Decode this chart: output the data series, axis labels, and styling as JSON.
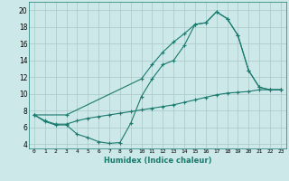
{
  "xlabel": "Humidex (Indice chaleur)",
  "ylabel": "",
  "xlim": [
    -0.5,
    23.5
  ],
  "ylim": [
    3.5,
    21
  ],
  "yticks": [
    4,
    6,
    8,
    10,
    12,
    14,
    16,
    18,
    20
  ],
  "xticks": [
    0,
    1,
    2,
    3,
    4,
    5,
    6,
    7,
    8,
    9,
    10,
    11,
    12,
    13,
    14,
    15,
    16,
    17,
    18,
    19,
    20,
    21,
    22,
    23
  ],
  "xtick_labels": [
    "0",
    "1",
    "2",
    "3",
    "4",
    "5",
    "6",
    "7",
    "8",
    "9",
    "10",
    "11",
    "12",
    "13",
    "14",
    "15",
    "16",
    "17",
    "18",
    "19",
    "20",
    "21",
    "22",
    "23"
  ],
  "line_color": "#1a7a6e",
  "bg_color": "#cce8e8",
  "grid_color": "#aac8c8",
  "line1_x": [
    0,
    1,
    2,
    3,
    4,
    5,
    6,
    7,
    8,
    9,
    10,
    11,
    12,
    13,
    14,
    15,
    16,
    17,
    18,
    19,
    20,
    21,
    22,
    23
  ],
  "line1_y": [
    7.5,
    6.7,
    6.3,
    6.3,
    5.2,
    4.8,
    4.3,
    4.1,
    4.2,
    6.5,
    9.7,
    11.8,
    13.5,
    14.0,
    15.8,
    18.3,
    18.5,
    19.8,
    19.0,
    17.0,
    12.8,
    10.8,
    10.5,
    10.5
  ],
  "line2_x": [
    0,
    1,
    2,
    3,
    4,
    5,
    6,
    7,
    8,
    9,
    10,
    11,
    12,
    13,
    14,
    15,
    16,
    17,
    18,
    19,
    20,
    21,
    22,
    23
  ],
  "line2_y": [
    7.5,
    6.8,
    6.4,
    6.4,
    6.8,
    7.1,
    7.3,
    7.5,
    7.7,
    7.9,
    8.1,
    8.3,
    8.5,
    8.7,
    9.0,
    9.3,
    9.6,
    9.9,
    10.1,
    10.2,
    10.3,
    10.5,
    10.5,
    10.5
  ],
  "line3_x": [
    0,
    3,
    10,
    11,
    12,
    13,
    14,
    15,
    16,
    17,
    18,
    19,
    20,
    21,
    22,
    23
  ],
  "line3_y": [
    7.5,
    7.5,
    11.8,
    13.5,
    15.0,
    16.2,
    17.2,
    18.3,
    18.5,
    19.8,
    19.0,
    17.0,
    12.8,
    10.8,
    10.5,
    10.5
  ]
}
